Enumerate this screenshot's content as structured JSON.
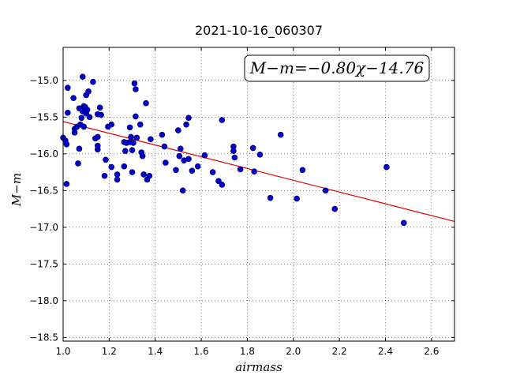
{
  "chart_data": {
    "type": "scatter",
    "title": "2021-10-16_060307",
    "xlabel": "airmass",
    "ylabel": "M−m",
    "xlim": [
      1.0,
      2.7
    ],
    "ylim": [
      -18.55,
      -14.55
    ],
    "x_ticks": [
      1.0,
      1.2,
      1.4,
      1.6,
      1.8,
      2.0,
      2.2,
      2.4,
      2.6
    ],
    "x_tick_labels": [
      "1.0",
      "1.2",
      "1.4",
      "1.6",
      "1.8",
      "2.0",
      "2.2",
      "2.4",
      "2.6"
    ],
    "y_ticks": [
      -15.0,
      -15.5,
      -16.0,
      -16.5,
      -17.0,
      -17.5,
      -18.0,
      -18.5
    ],
    "y_tick_labels": [
      "−15.0",
      "−15.5",
      "−16.0",
      "−16.5",
      "−17.0",
      "−17.5",
      "−18.0",
      "−18.5"
    ],
    "grid": true,
    "annotation": "M−m=−0.80χ−14.76",
    "fit": {
      "slope": -0.8,
      "intercept": -14.76,
      "color": "#dd0000"
    },
    "marker_color": "#0000cc",
    "points": [
      [
        1.0,
        -15.78
      ],
      [
        1.01,
        -15.82
      ],
      [
        1.015,
        -15.87
      ],
      [
        1.02,
        -15.1
      ],
      [
        1.02,
        -15.44
      ],
      [
        1.015,
        -16.41
      ],
      [
        1.045,
        -15.24
      ],
      [
        1.05,
        -15.66
      ],
      [
        1.05,
        -15.71
      ],
      [
        1.06,
        -15.63
      ],
      [
        1.065,
        -16.13
      ],
      [
        1.07,
        -15.38
      ],
      [
        1.07,
        -15.93
      ],
      [
        1.075,
        -15.6
      ],
      [
        1.08,
        -15.51
      ],
      [
        1.085,
        -15.42
      ],
      [
        1.085,
        -14.95
      ],
      [
        1.09,
        -15.35
      ],
      [
        1.09,
        -15.63
      ],
      [
        1.095,
        -15.36
      ],
      [
        1.1,
        -15.45
      ],
      [
        1.1,
        -15.2
      ],
      [
        1.105,
        -15.4
      ],
      [
        1.11,
        -15.15
      ],
      [
        1.115,
        -15.5
      ],
      [
        1.13,
        -15.02
      ],
      [
        1.14,
        -15.79
      ],
      [
        1.15,
        -15.77
      ],
      [
        1.15,
        -15.46
      ],
      [
        1.15,
        -15.89
      ],
      [
        1.15,
        -15.94
      ],
      [
        1.16,
        -15.37
      ],
      [
        1.165,
        -15.47
      ],
      [
        1.18,
        -16.3
      ],
      [
        1.185,
        -16.08
      ],
      [
        1.195,
        -15.63
      ],
      [
        1.21,
        -15.6
      ],
      [
        1.21,
        -16.18
      ],
      [
        1.235,
        -16.28
      ],
      [
        1.235,
        -16.35
      ],
      [
        1.265,
        -16.17
      ],
      [
        1.265,
        -15.84
      ],
      [
        1.27,
        -15.96
      ],
      [
        1.275,
        -15.85
      ],
      [
        1.29,
        -15.64
      ],
      [
        1.29,
        -15.84
      ],
      [
        1.295,
        -15.77
      ],
      [
        1.3,
        -15.95
      ],
      [
        1.305,
        -15.85
      ],
      [
        1.3,
        -16.25
      ],
      [
        1.31,
        -15.04
      ],
      [
        1.315,
        -15.12
      ],
      [
        1.315,
        -15.49
      ],
      [
        1.32,
        -15.78
      ],
      [
        1.335,
        -15.6
      ],
      [
        1.34,
        -15.98
      ],
      [
        1.345,
        -16.03
      ],
      [
        1.35,
        -16.28
      ],
      [
        1.36,
        -15.31
      ],
      [
        1.365,
        -16.35
      ],
      [
        1.375,
        -16.3
      ],
      [
        1.38,
        -15.8
      ],
      [
        1.43,
        -15.74
      ],
      [
        1.44,
        -15.9
      ],
      [
        1.445,
        -16.12
      ],
      [
        1.49,
        -16.22
      ],
      [
        1.5,
        -15.68
      ],
      [
        1.505,
        -16.03
      ],
      [
        1.51,
        -15.93
      ],
      [
        1.52,
        -16.5
      ],
      [
        1.525,
        -16.09
      ],
      [
        1.535,
        -15.6
      ],
      [
        1.545,
        -15.51
      ],
      [
        1.545,
        -16.07
      ],
      [
        1.56,
        -16.23
      ],
      [
        1.585,
        -16.17
      ],
      [
        1.615,
        -16.02
      ],
      [
        1.65,
        -16.25
      ],
      [
        1.675,
        -16.37
      ],
      [
        1.69,
        -16.42
      ],
      [
        1.69,
        -15.54
      ],
      [
        1.74,
        -15.9
      ],
      [
        1.74,
        -15.96
      ],
      [
        1.745,
        -16.05
      ],
      [
        1.77,
        -16.21
      ],
      [
        1.825,
        -15.92
      ],
      [
        1.83,
        -16.24
      ],
      [
        1.855,
        -16.01
      ],
      [
        1.9,
        -16.6
      ],
      [
        1.945,
        -15.74
      ],
      [
        2.015,
        -16.61
      ],
      [
        2.04,
        -16.22
      ],
      [
        2.14,
        -16.5
      ],
      [
        2.18,
        -16.75
      ],
      [
        2.405,
        -16.18
      ],
      [
        2.48,
        -16.94
      ]
    ]
  }
}
